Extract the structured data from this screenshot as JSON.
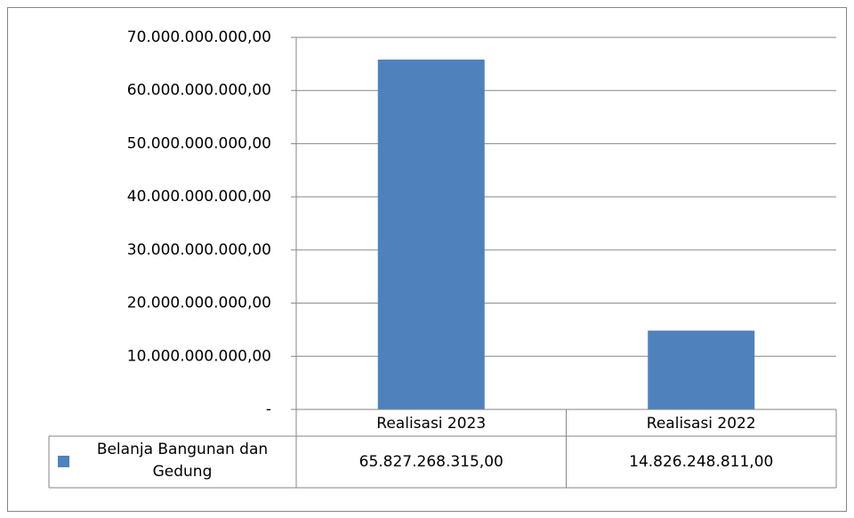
{
  "chart_data": {
    "type": "bar",
    "categories": [
      "Realisasi 2023",
      "Realisasi 2022"
    ],
    "series": [
      {
        "name": "Belanja Bangunan dan Gedung",
        "color": "#4f81bd",
        "values": [
          65827268315,
          14826248811
        ],
        "value_labels": [
          "65.827.268.315,00",
          "14.826.248.811,00"
        ]
      }
    ],
    "ylim": [
      0,
      70000000000
    ],
    "yticks": [
      {
        "value": 0,
        "label": "-"
      },
      {
        "value": 10000000000,
        "label": "10.000.000.000,00"
      },
      {
        "value": 20000000000,
        "label": "20.000.000.000,00"
      },
      {
        "value": 30000000000,
        "label": "30.000.000.000,00"
      },
      {
        "value": 40000000000,
        "label": "40.000.000.000,00"
      },
      {
        "value": 50000000000,
        "label": "50.000.000.000,00"
      },
      {
        "value": 60000000000,
        "label": "60.000.000.000,00"
      },
      {
        "value": 70000000000,
        "label": "70.000.000.000,00"
      }
    ],
    "grid": true,
    "data_table": true
  }
}
